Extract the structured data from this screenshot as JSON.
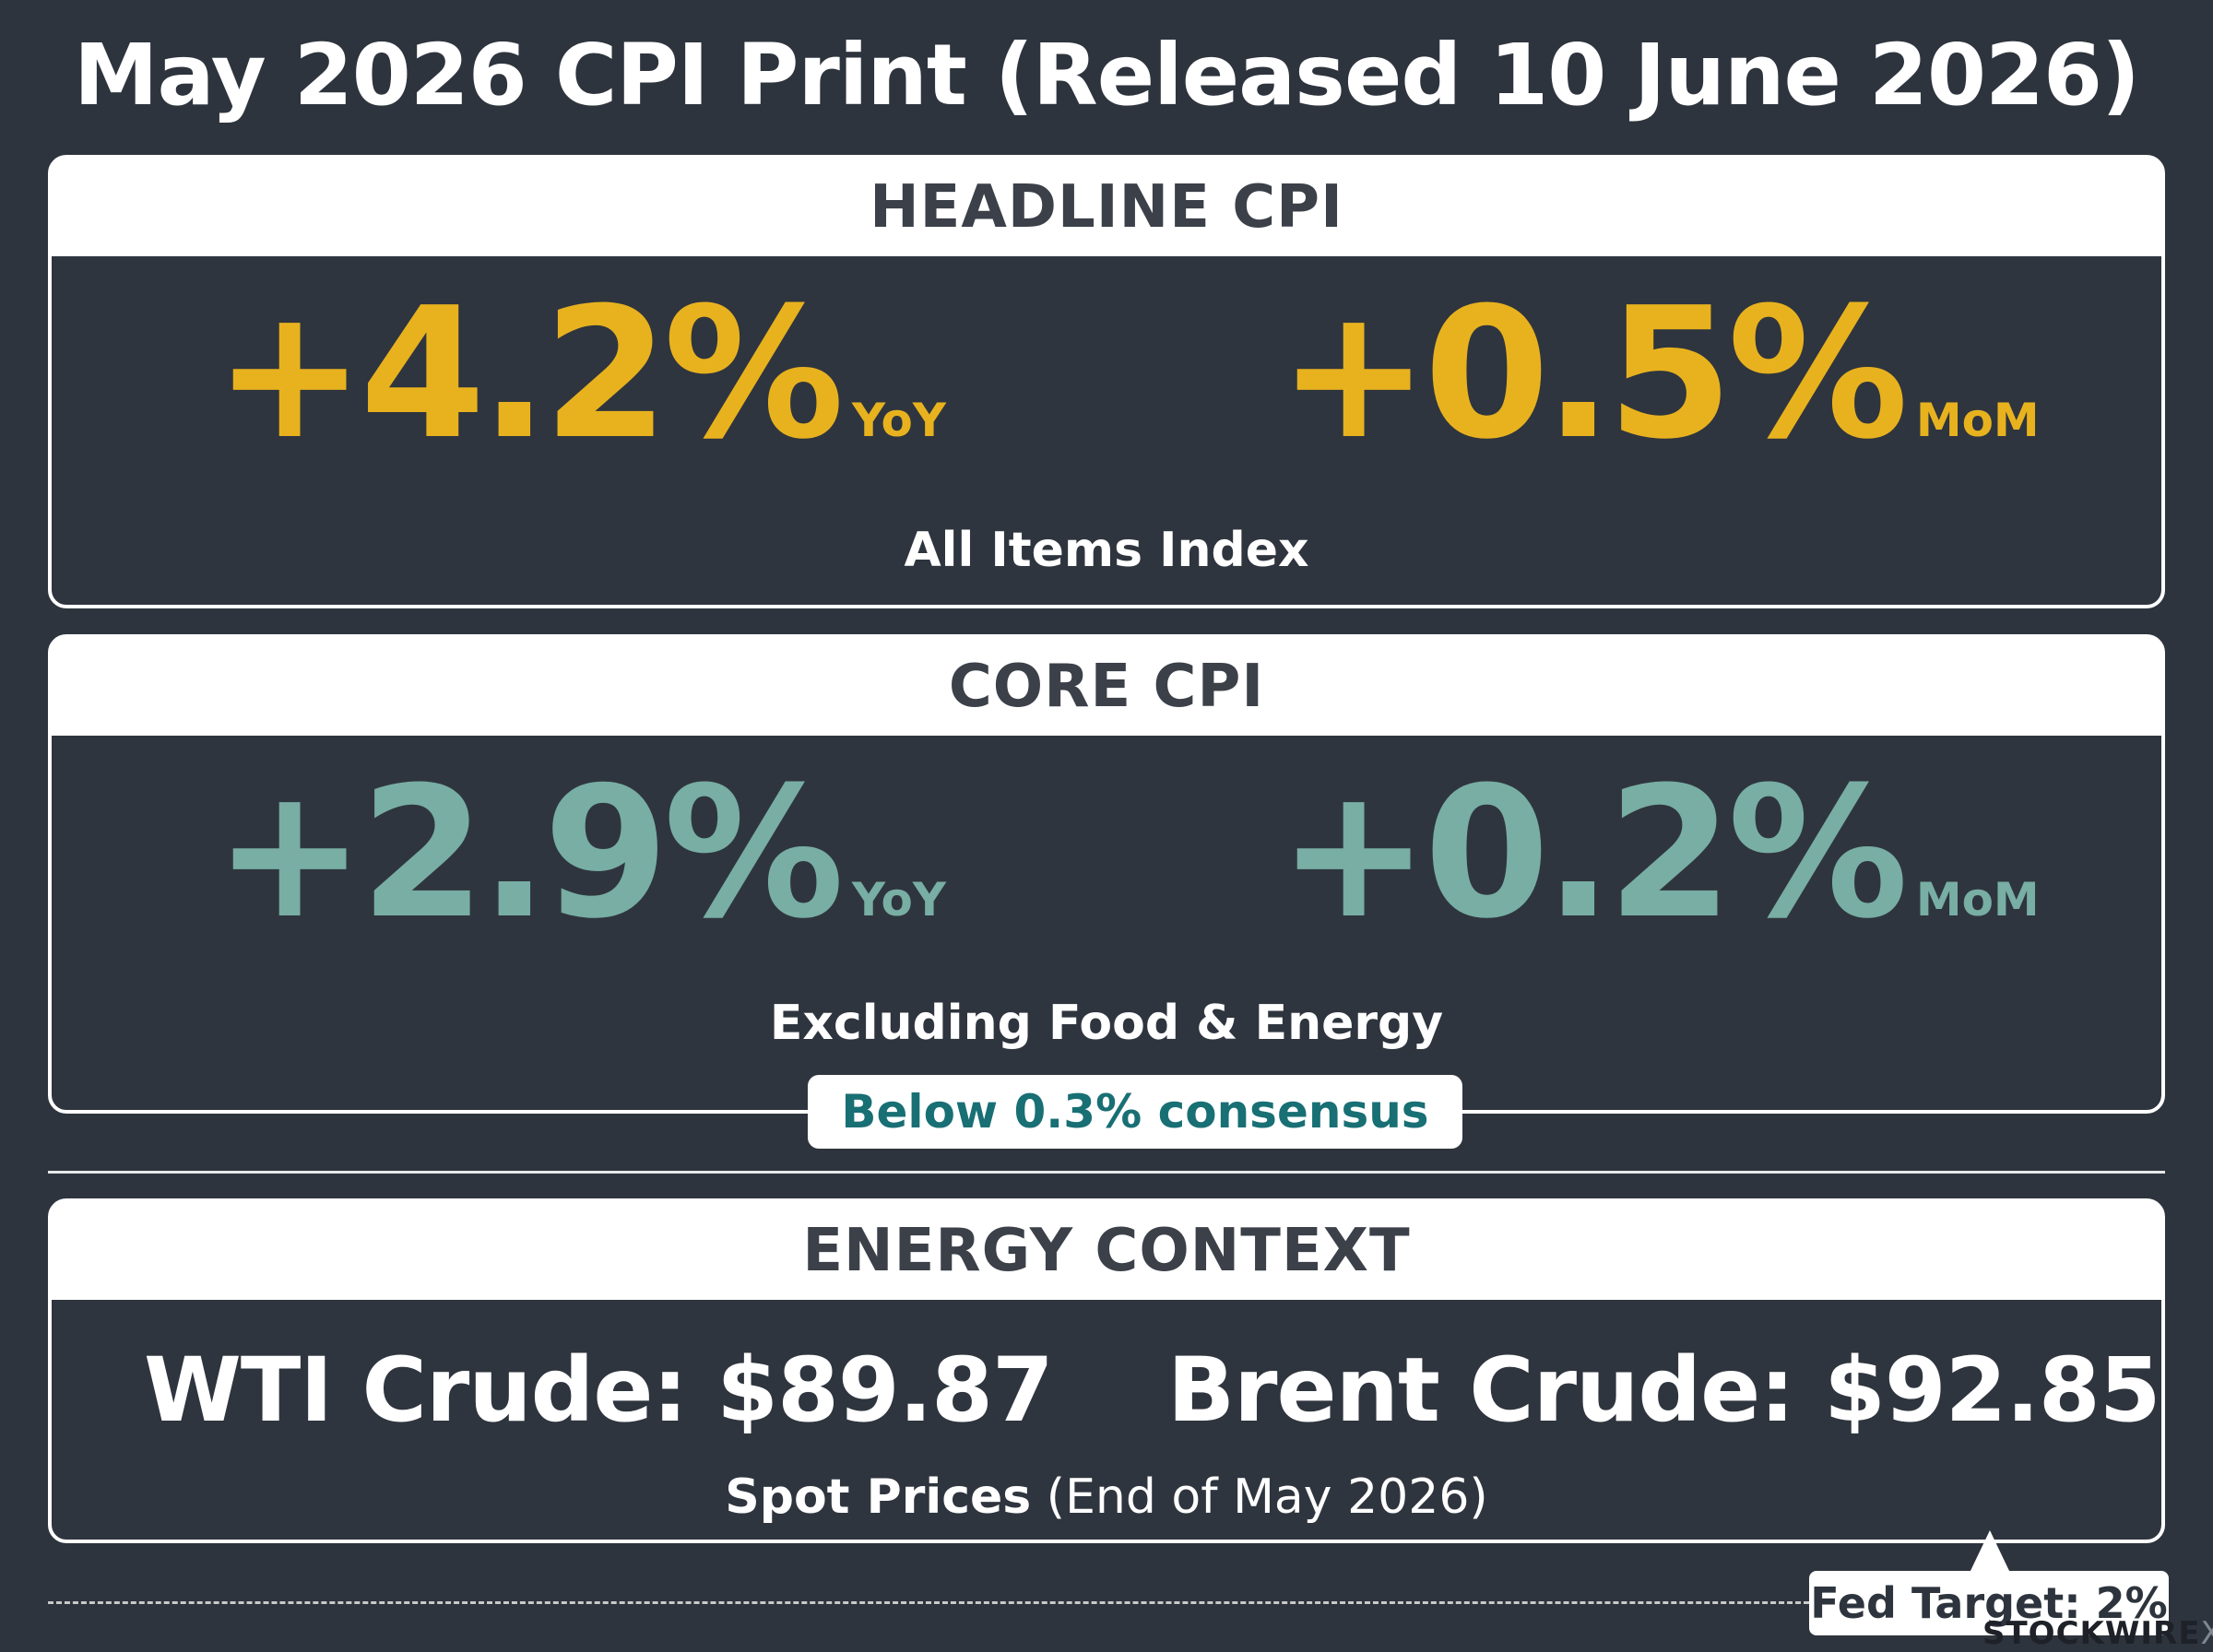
{
  "title": "May 2026 CPI Print (Released 10 June 2026)",
  "headline": {
    "header": "HEADLINE CPI",
    "yoy_value": "+4.2%",
    "yoy_label": "YoY",
    "mom_value": "+0.5%",
    "mom_label": "MoM",
    "subtitle": "All Items Index",
    "accent_color": "#e8b21f"
  },
  "core": {
    "header": "CORE CPI",
    "yoy_value": "+2.9%",
    "yoy_label": "YoY",
    "mom_value": "+0.2%",
    "mom_label": "MoM",
    "subtitle": "Excluding Food & Energy",
    "badge": "Below 0.3% consensus",
    "accent_color": "#78aea4"
  },
  "energy": {
    "header": "ENERGY CONTEXT",
    "wti": "WTI Crude: $89.87",
    "brent": "Brent Crude: $92.85",
    "spot_bold": "Spot Prices",
    "spot_rest": " (End of May 2026)"
  },
  "fed_target": "Fed Target: 2%",
  "logo": {
    "text": "STOCKWIRE",
    "suffix": "X"
  }
}
